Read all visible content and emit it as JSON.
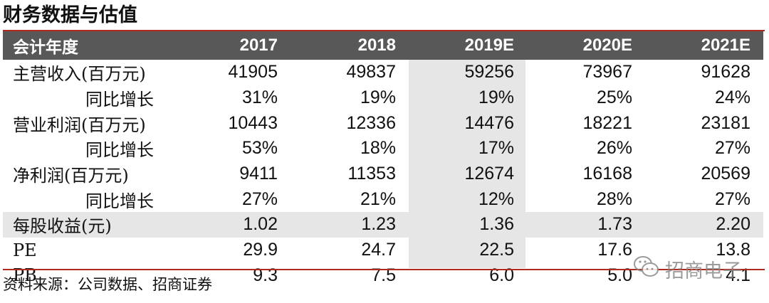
{
  "title": "财务数据与估值",
  "table": {
    "header": [
      "会计年度",
      "2017",
      "2018",
      "2019E",
      "2020E",
      "2021E"
    ],
    "rows": [
      {
        "label": "主营收入(百万元)",
        "values": [
          "41905",
          "49837",
          "59256",
          "73967",
          "91628"
        ]
      },
      {
        "label": "同比增长",
        "values": [
          "31%",
          "19%",
          "19%",
          "25%",
          "24%"
        ]
      },
      {
        "label": "营业利润(百万元)",
        "values": [
          "10443",
          "12336",
          "14476",
          "18221",
          "23181"
        ]
      },
      {
        "label": "同比增长",
        "values": [
          "53%",
          "18%",
          "17%",
          "26%",
          "27%"
        ]
      },
      {
        "label": "净利润(百万元)",
        "values": [
          "9411",
          "11353",
          "12674",
          "16168",
          "20569"
        ]
      },
      {
        "label": "同比增长",
        "values": [
          "27%",
          "21%",
          "12%",
          "28%",
          "27%"
        ]
      },
      {
        "label": "每股收益(元)",
        "values": [
          "1.02",
          "1.23",
          "1.36",
          "1.73",
          "2.20"
        ]
      },
      {
        "label": "PE",
        "values": [
          "29.9",
          "24.7",
          "22.5",
          "17.6",
          "13.8"
        ]
      },
      {
        "label": "PB",
        "values": [
          "9.3",
          "7.5",
          "6.0",
          "5.0",
          "4.1"
        ]
      }
    ]
  },
  "source": "资料来源：公司数据、招商证券",
  "watermark": {
    "text": "招商电子",
    "icon": "wechat-icon"
  },
  "colors": {
    "accent_rule": "#b02a1e",
    "header_bg": "#585858",
    "highlight": "#e6e6e6"
  }
}
